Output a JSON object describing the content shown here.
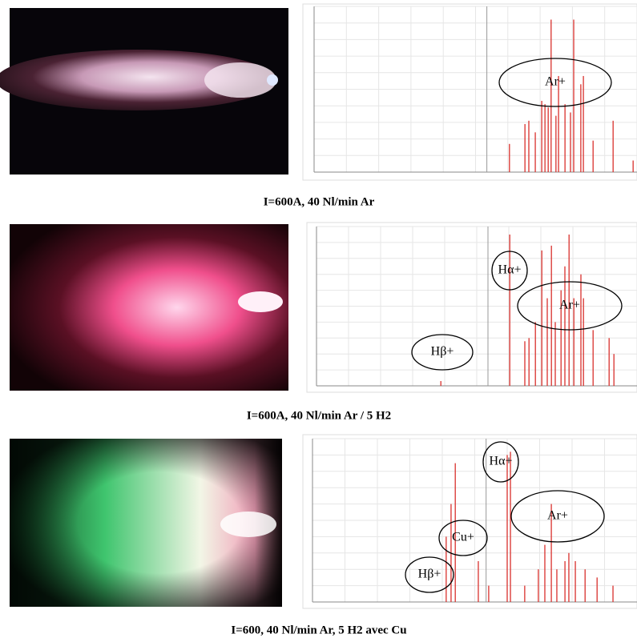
{
  "panels": [
    {
      "caption": "I=600A, 40 Nl/min Ar",
      "labels": [
        "Ar+"
      ],
      "spectrum": {
        "xlim": [
          0,
          100
        ],
        "ylim": [
          0,
          100
        ],
        "peak_x": [
          60.5,
          65.3,
          66.5,
          68.5,
          70.5,
          71.5,
          72.5,
          73.4,
          74.9,
          75.7,
          77.7,
          79.4,
          80.4,
          82.6,
          83.4,
          86.4,
          92.6,
          98.8
        ],
        "peak_height": [
          17,
          29,
          31,
          24,
          43,
          41,
          39,
          92,
          34,
          58,
          41,
          36,
          92,
          53,
          58,
          19,
          31,
          7
        ]
      }
    },
    {
      "caption": "I=600A, 40 Nl/min Ar / 5 H2",
      "labels": [
        "Hα+",
        "Ar+",
        "Hβ+"
      ],
      "spectrum": {
        "xlim": [
          0,
          100
        ],
        "ylim": [
          0,
          100
        ],
        "peak_x": [
          38.8,
          60.3,
          65,
          66.3,
          68.3,
          70.3,
          72,
          73.3,
          74.5,
          76.3,
          77.5,
          78.8,
          80.3,
          82.5,
          83.3,
          86.3,
          91.3,
          92.8
        ],
        "peak_height": [
          3,
          95,
          28,
          30,
          40,
          85,
          55,
          88,
          40,
          60,
          75,
          95,
          55,
          70,
          55,
          35,
          30,
          20
        ]
      }
    },
    {
      "caption": "I=600, 40 Nl/min Ar, 5 H2 avec Cu",
      "labels": [
        "Hα+",
        "Ar+",
        "Cu+",
        "Hβ+"
      ],
      "spectrum": {
        "xlim": [
          0,
          100
        ],
        "ylim": [
          0,
          100
        ],
        "peak_x": [
          41.2,
          42.7,
          44,
          51.1,
          54.3,
          60,
          61,
          65.4,
          69.6,
          71.6,
          73.6,
          75.3,
          77.8,
          79,
          81,
          84,
          87.7,
          92.6
        ],
        "peak_height": [
          40,
          60,
          85,
          25,
          10,
          90,
          92,
          10,
          20,
          35,
          60,
          20,
          25,
          30,
          25,
          20,
          15,
          10
        ]
      }
    }
  ]
}
